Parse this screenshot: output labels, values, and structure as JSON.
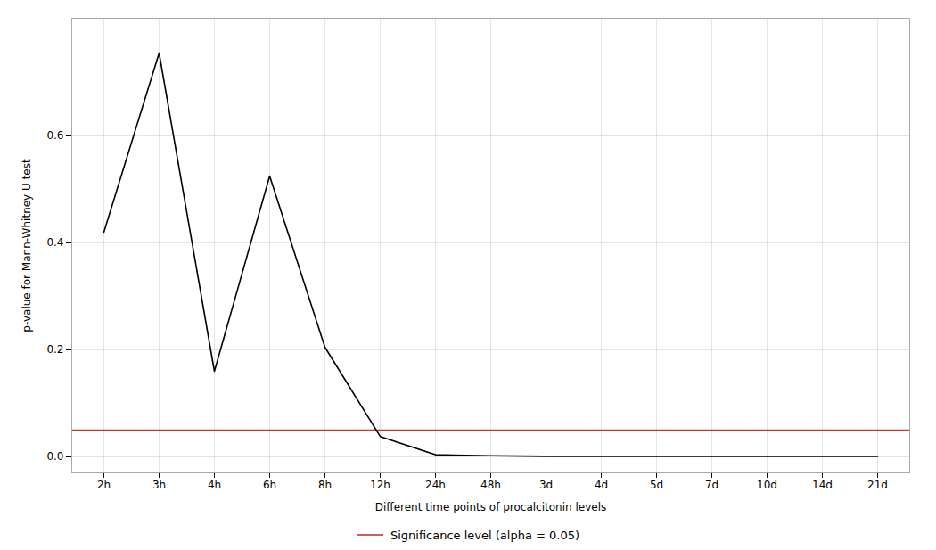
{
  "chart_data": {
    "type": "line",
    "categories": [
      "2h",
      "3h",
      "4h",
      "6h",
      "8h",
      "12h",
      "24h",
      "48h",
      "3d",
      "4d",
      "5d",
      "7d",
      "10d",
      "14d",
      "21d"
    ],
    "values": [
      0.42,
      0.755,
      0.16,
      0.525,
      0.205,
      0.038,
      0.004,
      0.002,
      0.001,
      0.001,
      0.001,
      0.001,
      0.001,
      0.001,
      0.001
    ],
    "color": "#000000",
    "reference_lines": [
      {
        "name": "Significance level (alpha = 0.05)",
        "value": 0.05,
        "color": "#c0392b"
      }
    ],
    "xlabel": "Different time points of procalcitonin levels",
    "ylabel": "p-value for Mann-Whitney U test",
    "ylim": [
      -0.03,
      0.82
    ],
    "yticks": [
      {
        "value": 0,
        "label": "0.0"
      },
      0.2,
      0.4,
      0.6
    ],
    "grid": true,
    "legend": "bottom"
  }
}
